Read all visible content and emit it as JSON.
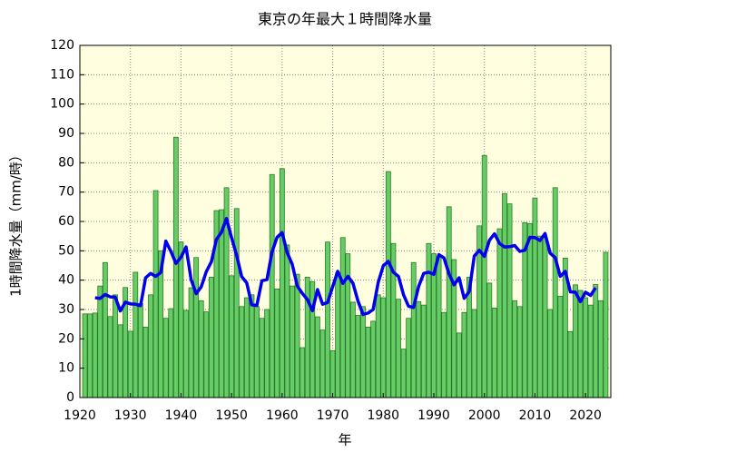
{
  "chart_data": {
    "type": "bar",
    "title": "東京の年最大１時間降水量",
    "xlabel": "年",
    "ylabel": "1時間降水量（mm/時）",
    "xlim": [
      1920,
      2025
    ],
    "ylim": [
      0,
      120
    ],
    "xticks": [
      1920,
      1930,
      1940,
      1950,
      1960,
      1970,
      1980,
      1990,
      2000,
      2010,
      2020
    ],
    "yticks": [
      0,
      10,
      20,
      30,
      40,
      50,
      60,
      70,
      80,
      90,
      100,
      110,
      120
    ],
    "grid": true,
    "background": "#ffffe0",
    "series": [
      {
        "type": "bar",
        "color": "#66cc66",
        "x": [
          1921,
          1922,
          1923,
          1924,
          1925,
          1926,
          1927,
          1928,
          1929,
          1930,
          1931,
          1932,
          1933,
          1934,
          1935,
          1936,
          1937,
          1938,
          1939,
          1940,
          1941,
          1942,
          1943,
          1944,
          1945,
          1946,
          1947,
          1948,
          1949,
          1950,
          1951,
          1952,
          1953,
          1954,
          1955,
          1956,
          1957,
          1958,
          1959,
          1960,
          1961,
          1962,
          1963,
          1964,
          1965,
          1966,
          1967,
          1968,
          1969,
          1970,
          1971,
          1972,
          1973,
          1974,
          1975,
          1976,
          1977,
          1978,
          1979,
          1980,
          1981,
          1982,
          1983,
          1984,
          1985,
          1986,
          1987,
          1988,
          1989,
          1990,
          1991,
          1992,
          1993,
          1994,
          1995,
          1996,
          1997,
          1998,
          1999,
          2000,
          2001,
          2002,
          2003,
          2004,
          2005,
          2006,
          2007,
          2008,
          2009,
          2010,
          2011,
          2012,
          2013,
          2014,
          2015,
          2016,
          2017,
          2018,
          2019,
          2020,
          2021,
          2022,
          2023,
          2024
        ],
        "values": [
          28.5,
          28.5,
          28.8,
          38,
          46,
          27.6,
          35,
          24.8,
          37.5,
          22.6,
          42.7,
          32,
          24,
          35,
          70.5,
          50,
          27,
          30.3,
          88.7,
          53,
          29.7,
          37.4,
          47.7,
          33,
          29.2,
          41,
          63.7,
          64,
          71.5,
          41.5,
          64.4,
          31,
          34,
          35,
          31,
          27,
          30,
          76,
          37,
          78,
          52,
          38,
          42,
          17,
          41,
          39.5,
          27.5,
          23,
          53,
          16,
          42.5,
          54.5,
          49,
          32.5,
          28,
          31,
          24,
          26,
          35,
          34,
          77,
          52.5,
          33.5,
          16.5,
          27,
          46,
          32.7,
          31.5,
          52.5,
          49,
          48,
          29,
          65,
          47,
          22,
          29,
          41,
          30,
          58.5,
          82.5,
          39,
          30.5,
          57.5,
          69.5,
          66,
          33,
          31,
          59.6,
          59.3,
          68,
          55,
          54.5,
          30,
          71.5,
          34.5,
          47.5,
          22.5,
          38.4,
          36.5,
          34,
          31.5,
          38.5,
          33,
          49.5
        ]
      },
      {
        "type": "line",
        "color": "#0000ee",
        "x": [
          1923,
          1924,
          1925,
          1926,
          1927,
          1928,
          1929,
          1930,
          1931,
          1932,
          1933,
          1934,
          1935,
          1936,
          1937,
          1938,
          1939,
          1940,
          1941,
          1942,
          1943,
          1944,
          1945,
          1946,
          1947,
          1948,
          1949,
          1950,
          1951,
          1952,
          1953,
          1954,
          1955,
          1956,
          1957,
          1958,
          1959,
          1960,
          1961,
          1962,
          1963,
          1964,
          1965,
          1966,
          1967,
          1968,
          1969,
          1970,
          1971,
          1972,
          1973,
          1974,
          1975,
          1976,
          1977,
          1978,
          1979,
          1980,
          1981,
          1982,
          1983,
          1984,
          1985,
          1986,
          1987,
          1988,
          1989,
          1990,
          1991,
          1992,
          1993,
          1994,
          1995,
          1996,
          1997,
          1998,
          1999,
          2000,
          2001,
          2002,
          2003,
          2004,
          2005,
          2006,
          2007,
          2008,
          2009,
          2010,
          2011,
          2012,
          2013,
          2014,
          2015,
          2016,
          2017,
          2018,
          2019,
          2020,
          2021,
          2022
        ],
        "values": [
          34,
          33.8,
          35.1,
          34.3,
          34.2,
          29.5,
          32.5,
          31.9,
          31.8,
          31.3,
          40.8,
          42.3,
          41.3,
          42.6,
          53.3,
          49.8,
          45.7,
          47.8,
          51.3,
          40.2,
          35.4,
          37.7,
          42.9,
          46.2,
          53.9,
          56.3,
          61,
          54.5,
          48.5,
          41.2,
          39.1,
          31.6,
          31.4,
          39.8,
          40.2,
          49.6,
          54.6,
          56.2,
          49.4,
          45.4,
          38,
          35.5,
          33.4,
          29.6,
          36.8,
          31.8,
          32.4,
          37.8,
          43,
          38.9,
          41.3,
          39,
          32.9,
          28.3,
          28.8,
          30,
          39.2,
          44.9,
          46.4,
          42.7,
          41.3,
          35.1,
          31.1,
          30.7,
          37.9,
          42.3,
          42.7,
          42,
          48.7,
          47.6,
          42.2,
          38.4,
          40.8,
          33.8,
          36.1,
          48.2,
          50.2,
          48.1,
          53.6,
          55.8,
          52.5,
          51.3,
          51.4,
          51.8,
          49.8,
          50.2,
          54.6,
          54.5,
          53.5,
          55.9,
          49.2,
          47.7,
          41.3,
          43,
          36,
          35.9,
          32.7,
          35.9,
          34.8,
          37.4
        ]
      }
    ]
  }
}
